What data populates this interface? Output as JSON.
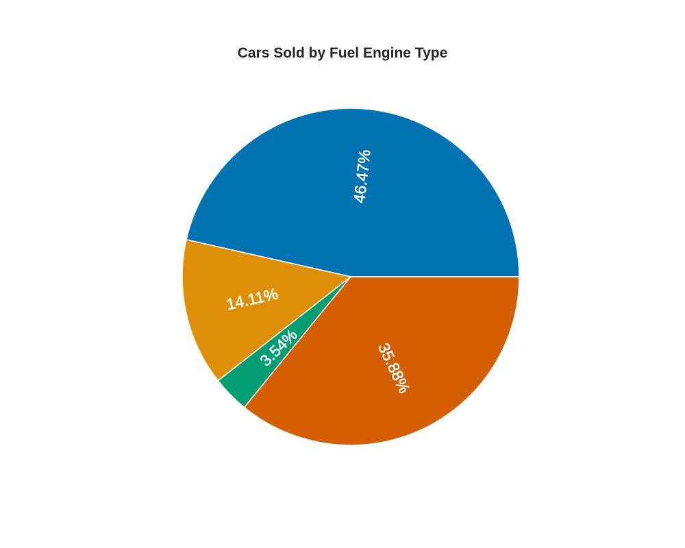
{
  "chart_data": {
    "type": "pie",
    "title": "Cars Sold by Fuel Engine Type",
    "slices": [
      {
        "label": "46.47%",
        "value": 46.47,
        "color": "#0173b2"
      },
      {
        "label": "14.11%",
        "value": 14.11,
        "color": "#de8f05"
      },
      {
        "label": "3.54%",
        "value": 3.54,
        "color": "#029e73"
      },
      {
        "label": "35.88%",
        "value": 35.88,
        "color": "#d55e00"
      }
    ],
    "start_angle_deg": 0,
    "direction": "counterclockwise",
    "slice_edge_color": "#ffffff",
    "legend": "none"
  }
}
